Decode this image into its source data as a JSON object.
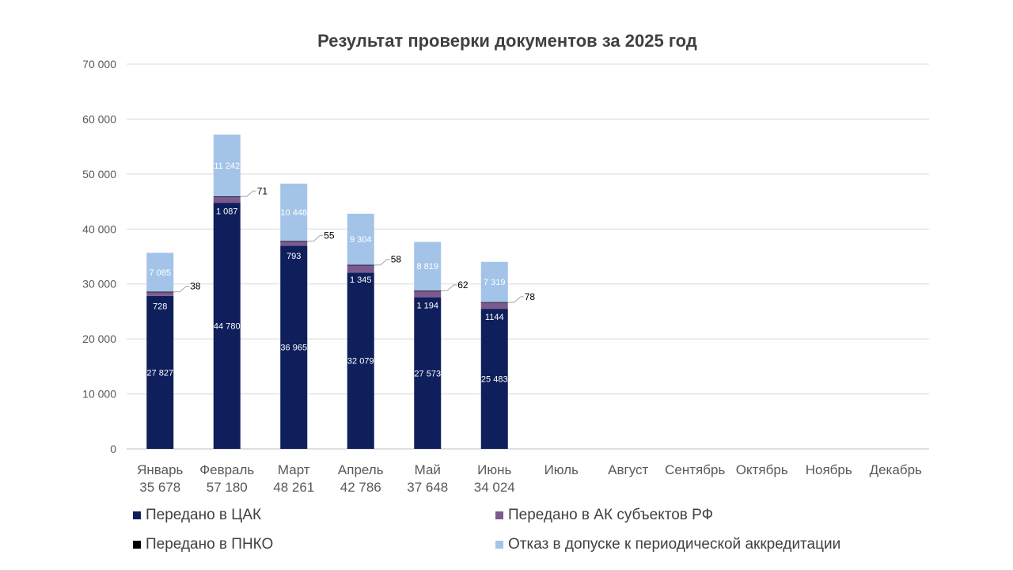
{
  "chart_data": {
    "type": "bar",
    "stacked": true,
    "title": "Результат проверки документов за 2025 год",
    "categories": [
      "Январь",
      "Февраль",
      "Март",
      "Апрель",
      "Май",
      "Июнь",
      "Июль",
      "Август",
      "Сентябрь",
      "Октябрь",
      "Ноябрь",
      "Декабрь"
    ],
    "category_totals": [
      "35 678",
      "57 180",
      "48 261",
      "42 786",
      "37 648",
      "34 024",
      "",
      "",
      "",
      "",
      "",
      ""
    ],
    "ylim": [
      0,
      70000
    ],
    "yticks": [
      0,
      10000,
      20000,
      30000,
      40000,
      50000,
      60000,
      70000
    ],
    "ytick_labels": [
      "0",
      "10 000",
      "20 000",
      "30 000",
      "40 000",
      "50 000",
      "60 000",
      "70 000"
    ],
    "grid": true,
    "legend_position": "bottom",
    "series": [
      {
        "name": "Передано в ЦАК",
        "color": "#0e1f5b",
        "values": [
          27827,
          44780,
          36965,
          32079,
          27573,
          25483,
          null,
          null,
          null,
          null,
          null,
          null
        ],
        "labels": [
          "27 827",
          "44 780",
          "36 965",
          "32 079",
          "27 573",
          "25 483",
          "",
          "",
          "",
          "",
          "",
          ""
        ]
      },
      {
        "name": "Передано в АК субъектов РФ",
        "color": "#7b5b8f",
        "values": [
          728,
          1087,
          793,
          1345,
          1194,
          1144,
          null,
          null,
          null,
          null,
          null,
          null
        ],
        "labels": [
          "728",
          "1 087",
          "793",
          "1 345",
          "1 194",
          "1144",
          "",
          "",
          "",
          "",
          "",
          ""
        ]
      },
      {
        "name": "Передано в ПНКО",
        "color": "#000000",
        "values": [
          38,
          71,
          55,
          58,
          62,
          78,
          null,
          null,
          null,
          null,
          null,
          null
        ],
        "labels": [
          "38",
          "71",
          "55",
          "58",
          "62",
          "78",
          "",
          "",
          "",
          "",
          "",
          ""
        ]
      },
      {
        "name": "Отказ в допуске к периодической аккредитации",
        "color": "#a3c4e8",
        "values": [
          7085,
          11242,
          10448,
          9304,
          8819,
          7319,
          null,
          null,
          null,
          null,
          null,
          null
        ],
        "labels": [
          "7 085",
          "11 242",
          "10 448",
          "9 304",
          "8 819",
          "7 319",
          "",
          "",
          "",
          "",
          "",
          ""
        ]
      }
    ]
  }
}
